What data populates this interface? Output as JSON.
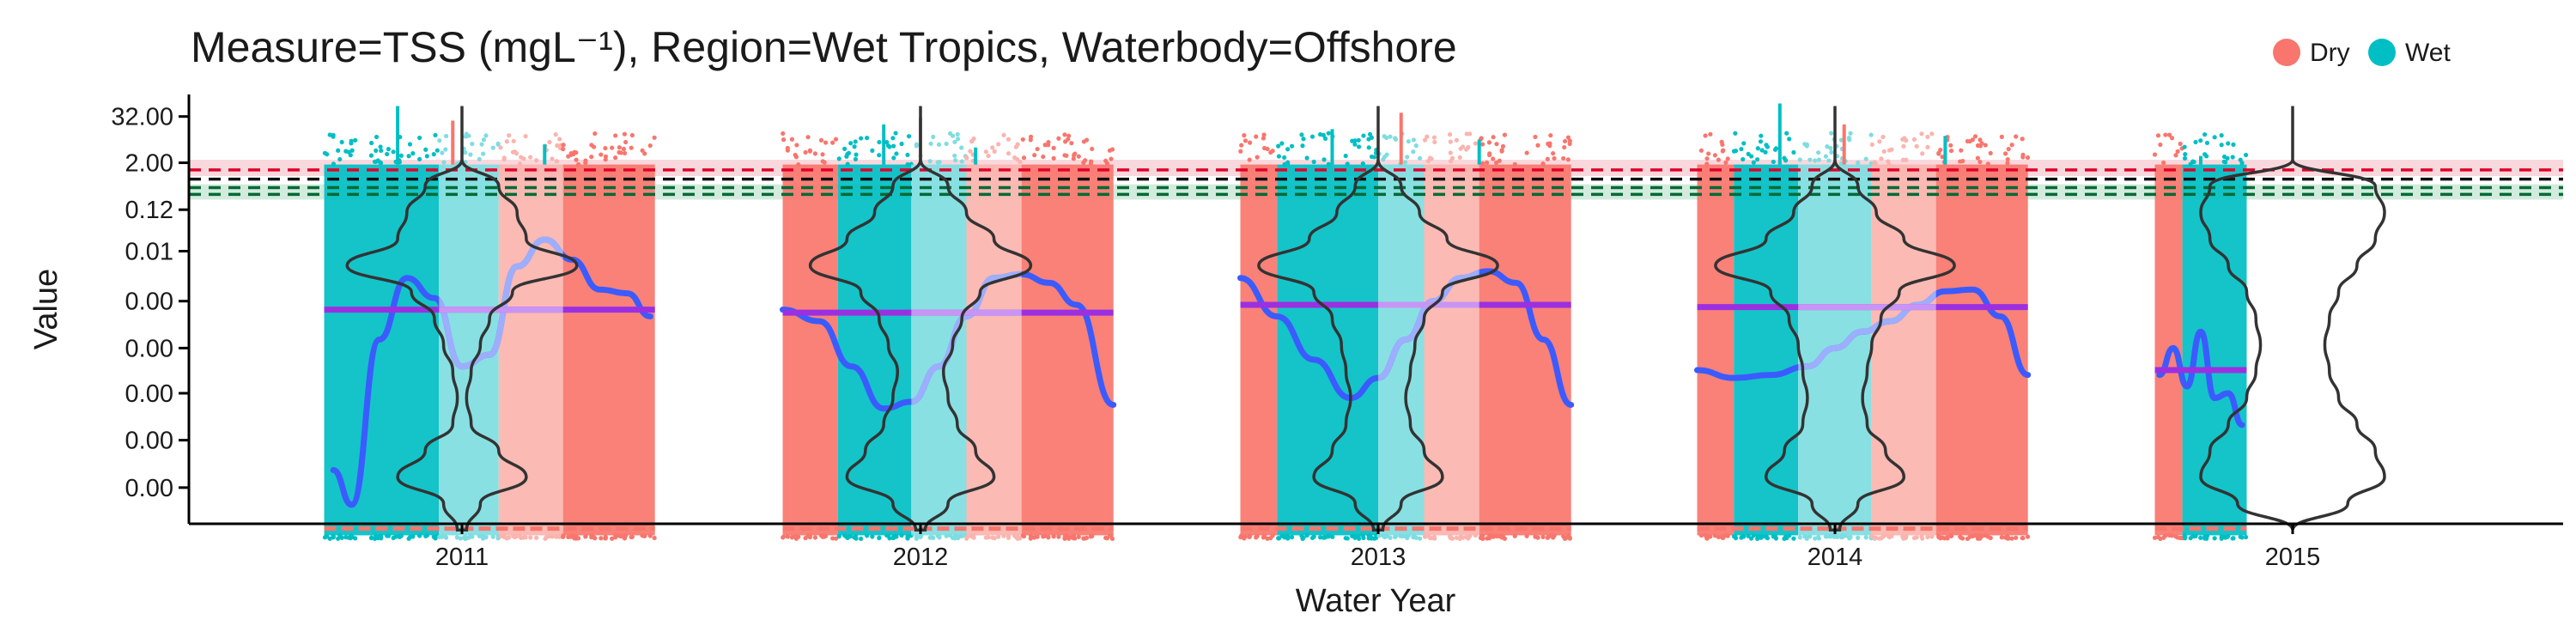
{
  "chart_data": {
    "type": "scatter",
    "title": "Measure=TSS (mgL⁻¹), Region=Wet Tropics, Waterbody=Offshore",
    "xlabel": "Water Year",
    "ylabel": "Value",
    "y_scale": "log",
    "x_categories": [
      "2011",
      "2012",
      "2013",
      "2014",
      "2015"
    ],
    "y_tick_labels": [
      "32.00",
      "2.00",
      "0.12",
      "0.01",
      "0.00",
      "0.00",
      "0.00",
      "0.00",
      "0.00"
    ],
    "y_tick_values": [
      32,
      2,
      0.12,
      0.01,
      0.0005,
      3e-05,
      2e-06,
      1.2e-07,
      7e-09
    ],
    "ylim": [
      8e-10,
      120
    ],
    "grid": false,
    "legend": {
      "position": "top-right",
      "entries": [
        {
          "label": "Dry",
          "color": "#F8766D"
        },
        {
          "label": "Wet",
          "color": "#00BFC4"
        }
      ]
    },
    "colors": {
      "dry": "#F8766D",
      "wet": "#00BFC4",
      "dry_light": "#FBB4AE",
      "wet_light": "#7FDDE1",
      "trend": "#3B5BFF",
      "trend_light": "#9DAEFF",
      "mean": "#9B30E0",
      "mean_light": "#C895F5",
      "violin": "#333333",
      "guideline_red": "#E0002A",
      "guideline_black": "#111111",
      "guideline_green": "#006A35"
    },
    "guidelines": [
      {
        "value": 1.3,
        "color": "red",
        "style": "dashed"
      },
      {
        "value": 0.75,
        "color": "black",
        "style": "dashed"
      },
      {
        "value": 0.45,
        "color": "green",
        "style": "dashed"
      },
      {
        "value": 0.3,
        "color": "green",
        "style": "dashed"
      }
    ],
    "guideline_bands": [
      {
        "from": 0.9,
        "to": 2.4,
        "color": "red"
      },
      {
        "from": 0.22,
        "to": 0.55,
        "color": "green"
      }
    ],
    "years": [
      {
        "label": "2011",
        "start": -0.3,
        "end": 0.42,
        "seasons": [
          {
            "season": "wet",
            "from": -0.3,
            "to": -0.05,
            "shade": "dark"
          },
          {
            "season": "wet",
            "from": -0.05,
            "to": 0.08,
            "shade": "light"
          },
          {
            "season": "dry",
            "from": 0.08,
            "to": 0.22,
            "shade": "light"
          },
          {
            "season": "dry",
            "from": 0.22,
            "to": 0.42,
            "shade": "dark"
          }
        ],
        "spikes": [
          {
            "x": -0.14,
            "y": 60
          },
          {
            "x": -0.02,
            "y": 25
          },
          {
            "x": 0.18,
            "y": 6
          }
        ],
        "mean": 0.0003,
        "trend_x": [
          -0.28,
          -0.24,
          -0.18,
          -0.12,
          -0.06,
          0.0,
          0.06,
          0.12,
          0.18,
          0.24,
          0.3,
          0.36,
          0.41
        ],
        "trend_y": [
          2e-08,
          2.5e-09,
          5e-05,
          0.002,
          0.0006,
          1e-05,
          2e-05,
          0.004,
          0.02,
          0.006,
          0.001,
          0.0008,
          0.0002
        ],
        "violin_half_widths": [
          0.0,
          0.08,
          0.12,
          0.14,
          0.25,
          0.11,
          0.06,
          0.04,
          0.02,
          0.01,
          0.02,
          0.08,
          0.14,
          0.04,
          0.01
        ]
      },
      {
        "label": "2012",
        "start": -0.3,
        "end": 0.42,
        "seasons": [
          {
            "season": "dry",
            "from": -0.3,
            "to": -0.18,
            "shade": "dark"
          },
          {
            "season": "wet",
            "from": -0.18,
            "to": -0.02,
            "shade": "dark"
          },
          {
            "season": "wet",
            "from": -0.02,
            "to": 0.1,
            "shade": "light"
          },
          {
            "season": "dry",
            "from": 0.1,
            "to": 0.22,
            "shade": "light"
          },
          {
            "season": "dry",
            "from": 0.22,
            "to": 0.42,
            "shade": "dark"
          }
        ],
        "spikes": [
          {
            "x": -0.08,
            "y": 20
          },
          {
            "x": 0.0,
            "y": 30
          },
          {
            "x": 0.12,
            "y": 5
          }
        ],
        "mean": 0.00025,
        "trend_x": [
          -0.3,
          -0.22,
          -0.15,
          -0.08,
          -0.02,
          0.04,
          0.1,
          0.16,
          0.22,
          0.28,
          0.34,
          0.42
        ],
        "trend_y": [
          0.0003,
          0.00015,
          1e-05,
          8e-07,
          1.2e-06,
          1e-05,
          0.0002,
          0.002,
          0.0025,
          0.0015,
          0.0004,
          1e-06
        ],
        "violin_half_widths": [
          0.0,
          0.06,
          0.1,
          0.16,
          0.24,
          0.13,
          0.09,
          0.07,
          0.05,
          0.06,
          0.08,
          0.12,
          0.16,
          0.06,
          0.01
        ]
      },
      {
        "label": "2013",
        "start": -0.3,
        "end": 0.42,
        "seasons": [
          {
            "season": "dry",
            "from": -0.3,
            "to": -0.22,
            "shade": "dark"
          },
          {
            "season": "wet",
            "from": -0.22,
            "to": 0.0,
            "shade": "dark"
          },
          {
            "season": "wet",
            "from": 0.0,
            "to": 0.1,
            "shade": "light"
          },
          {
            "season": "dry",
            "from": 0.1,
            "to": 0.22,
            "shade": "light"
          },
          {
            "season": "dry",
            "from": 0.22,
            "to": 0.42,
            "shade": "dark"
          }
        ],
        "spikes": [
          {
            "x": -0.1,
            "y": 15
          },
          {
            "x": 0.05,
            "y": 40
          },
          {
            "x": 0.22,
            "y": 8
          }
        ],
        "mean": 0.0004,
        "trend_x": [
          -0.3,
          -0.22,
          -0.14,
          -0.06,
          0.0,
          0.06,
          0.12,
          0.18,
          0.24,
          0.3,
          0.36,
          0.42
        ],
        "trend_y": [
          0.002,
          0.0002,
          1.5e-05,
          1.5e-06,
          5e-06,
          5e-05,
          0.0005,
          0.002,
          0.003,
          0.0015,
          5e-05,
          1e-06
        ],
        "violin_half_widths": [
          0.0,
          0.05,
          0.09,
          0.15,
          0.26,
          0.14,
          0.1,
          0.08,
          0.07,
          0.06,
          0.07,
          0.1,
          0.14,
          0.05,
          0.01
        ]
      },
      {
        "label": "2014",
        "start": -0.3,
        "end": 0.42,
        "seasons": [
          {
            "season": "dry",
            "from": -0.3,
            "to": -0.22,
            "shade": "dark"
          },
          {
            "season": "wet",
            "from": -0.22,
            "to": -0.08,
            "shade": "dark"
          },
          {
            "season": "wet",
            "from": -0.08,
            "to": 0.08,
            "shade": "light"
          },
          {
            "season": "dry",
            "from": 0.08,
            "to": 0.22,
            "shade": "light"
          },
          {
            "season": "dry",
            "from": 0.22,
            "to": 0.42,
            "shade": "dark"
          }
        ],
        "spikes": [
          {
            "x": -0.12,
            "y": 70
          },
          {
            "x": 0.02,
            "y": 20
          },
          {
            "x": 0.24,
            "y": 10
          }
        ],
        "mean": 0.00035,
        "trend_x": [
          -0.3,
          -0.22,
          -0.14,
          -0.06,
          0.0,
          0.06,
          0.12,
          0.18,
          0.24,
          0.3,
          0.36,
          0.42
        ],
        "trend_y": [
          8e-06,
          5e-06,
          6e-06,
          1e-05,
          3e-05,
          8e-05,
          0.00015,
          0.0004,
          0.0009,
          0.001,
          0.0002,
          6e-06
        ],
        "violin_half_widths": [
          0.0,
          0.05,
          0.09,
          0.15,
          0.26,
          0.14,
          0.1,
          0.08,
          0.07,
          0.06,
          0.07,
          0.11,
          0.15,
          0.05,
          0.01
        ]
      },
      {
        "label": "2015",
        "start": -0.3,
        "end": -0.1,
        "seasons": [
          {
            "season": "dry",
            "from": -0.3,
            "to": -0.24,
            "shade": "dark"
          },
          {
            "season": "wet",
            "from": -0.24,
            "to": -0.1,
            "shade": "dark"
          }
        ],
        "spikes": [
          {
            "x": -0.2,
            "y": 3
          }
        ],
        "mean": 8e-06,
        "trend_x": [
          -0.29,
          -0.26,
          -0.23,
          -0.2,
          -0.17,
          -0.14,
          -0.11
        ],
        "trend_y": [
          6e-06,
          3e-05,
          3e-06,
          8e-05,
          1.5e-06,
          2e-06,
          3e-07
        ],
        "violin_half_widths": [
          0.0,
          0.18,
          0.2,
          0.18,
          0.14,
          0.1,
          0.08,
          0.07,
          0.08,
          0.1,
          0.14,
          0.18,
          0.2,
          0.12,
          0.0
        ]
      }
    ]
  }
}
